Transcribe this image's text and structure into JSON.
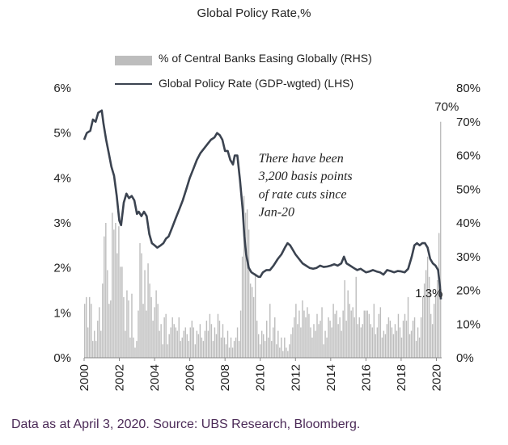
{
  "chart_data": {
    "type": "bar+line",
    "title": "Global Policy Rate,%",
    "legend": [
      {
        "label": "% of Central Banks Easing Globally (RHS)",
        "kind": "bar",
        "color": "#bdbdbd"
      },
      {
        "label": "Global Policy Rate (GDP-wgted) (LHS)",
        "kind": "line",
        "color": "#3b4350"
      }
    ],
    "x_ticks": [
      "2000",
      "2002",
      "2004",
      "2006",
      "2008",
      "2010",
      "2012",
      "2014",
      "2016",
      "2018",
      "2020"
    ],
    "y_left_ticks": [
      "0%",
      "1%",
      "2%",
      "3%",
      "4%",
      "5%",
      "6%"
    ],
    "y_right_ticks": [
      "0%",
      "10%",
      "20%",
      "30%",
      "40%",
      "50%",
      "60%",
      "70%",
      "80%"
    ],
    "y_left_range": [
      0,
      6
    ],
    "y_right_range": [
      0,
      80
    ],
    "x_range": [
      2000.0,
      2020.3
    ],
    "grid": false,
    "annotations": [
      {
        "text": "There have been",
        "x": 2009.9,
        "y": 4.35
      },
      {
        "text": "3,200 basis points",
        "x": 2009.9,
        "y": 3.95
      },
      {
        "text": "of rate cuts since",
        "x": 2009.9,
        "y": 3.55
      },
      {
        "text": "Jan-20",
        "x": 2009.9,
        "y": 3.15
      },
      {
        "text": "70%",
        "x": 2019.9,
        "y": 5.5
      },
      {
        "text": "1.3%",
        "x": 2018.8,
        "y": 1.35
      }
    ],
    "line_series": {
      "name": "Global Policy Rate (GDP-wgted) (LHS)",
      "points": [
        [
          2000.0,
          4.85
        ],
        [
          2000.15,
          5.0
        ],
        [
          2000.35,
          5.05
        ],
        [
          2000.5,
          5.3
        ],
        [
          2000.65,
          5.25
        ],
        [
          2000.8,
          5.45
        ],
        [
          2001.0,
          5.5
        ],
        [
          2001.1,
          5.2
        ],
        [
          2001.25,
          4.85
        ],
        [
          2001.4,
          4.55
        ],
        [
          2001.55,
          4.25
        ],
        [
          2001.7,
          4.05
        ],
        [
          2001.85,
          3.6
        ],
        [
          2002.0,
          3.05
        ],
        [
          2002.1,
          2.95
        ],
        [
          2002.25,
          3.45
        ],
        [
          2002.4,
          3.65
        ],
        [
          2002.55,
          3.55
        ],
        [
          2002.7,
          3.6
        ],
        [
          2002.85,
          3.5
        ],
        [
          2003.0,
          3.2
        ],
        [
          2003.1,
          3.25
        ],
        [
          2003.25,
          3.15
        ],
        [
          2003.4,
          3.25
        ],
        [
          2003.55,
          3.15
        ],
        [
          2003.7,
          2.75
        ],
        [
          2003.85,
          2.55
        ],
        [
          2004.0,
          2.5
        ],
        [
          2004.15,
          2.45
        ],
        [
          2004.35,
          2.5
        ],
        [
          2004.5,
          2.55
        ],
        [
          2004.65,
          2.65
        ],
        [
          2004.8,
          2.7
        ],
        [
          2005.0,
          2.9
        ],
        [
          2005.2,
          3.1
        ],
        [
          2005.4,
          3.3
        ],
        [
          2005.6,
          3.5
        ],
        [
          2005.8,
          3.75
        ],
        [
          2006.0,
          4.0
        ],
        [
          2006.2,
          4.2
        ],
        [
          2006.4,
          4.4
        ],
        [
          2006.6,
          4.55
        ],
        [
          2006.8,
          4.65
        ],
        [
          2007.0,
          4.75
        ],
        [
          2007.2,
          4.85
        ],
        [
          2007.4,
          4.9
        ],
        [
          2007.55,
          5.0
        ],
        [
          2007.7,
          4.95
        ],
        [
          2007.85,
          4.85
        ],
        [
          2008.0,
          4.6
        ],
        [
          2008.15,
          4.6
        ],
        [
          2008.3,
          4.4
        ],
        [
          2008.45,
          4.3
        ],
        [
          2008.55,
          4.5
        ],
        [
          2008.7,
          4.5
        ],
        [
          2008.85,
          3.95
        ],
        [
          2009.0,
          3.3
        ],
        [
          2009.1,
          2.7
        ],
        [
          2009.2,
          2.3
        ],
        [
          2009.35,
          2.0
        ],
        [
          2009.5,
          1.9
        ],
        [
          2009.7,
          1.85
        ],
        [
          2009.9,
          1.8
        ],
        [
          2010.0,
          1.8
        ],
        [
          2010.15,
          1.9
        ],
        [
          2010.35,
          1.95
        ],
        [
          2010.55,
          1.95
        ],
        [
          2010.75,
          2.05
        ],
        [
          2011.0,
          2.2
        ],
        [
          2011.2,
          2.3
        ],
        [
          2011.4,
          2.45
        ],
        [
          2011.55,
          2.55
        ],
        [
          2011.7,
          2.5
        ],
        [
          2011.85,
          2.4
        ],
        [
          2012.0,
          2.3
        ],
        [
          2012.2,
          2.2
        ],
        [
          2012.4,
          2.1
        ],
        [
          2012.6,
          2.05
        ],
        [
          2012.8,
          2.0
        ],
        [
          2013.0,
          1.98
        ],
        [
          2013.2,
          2.0
        ],
        [
          2013.4,
          2.05
        ],
        [
          2013.6,
          2.02
        ],
        [
          2013.8,
          2.03
        ],
        [
          2014.0,
          2.05
        ],
        [
          2014.2,
          2.08
        ],
        [
          2014.4,
          2.05
        ],
        [
          2014.6,
          2.1
        ],
        [
          2014.75,
          2.25
        ],
        [
          2014.9,
          2.1
        ],
        [
          2015.1,
          2.05
        ],
        [
          2015.3,
          2.0
        ],
        [
          2015.5,
          1.95
        ],
        [
          2015.7,
          1.98
        ],
        [
          2016.0,
          1.9
        ],
        [
          2016.2,
          1.92
        ],
        [
          2016.4,
          1.95
        ],
        [
          2016.6,
          1.92
        ],
        [
          2016.8,
          1.9
        ],
        [
          2017.0,
          1.85
        ],
        [
          2017.2,
          1.95
        ],
        [
          2017.4,
          1.93
        ],
        [
          2017.6,
          1.9
        ],
        [
          2017.8,
          1.93
        ],
        [
          2018.0,
          1.92
        ],
        [
          2018.2,
          1.9
        ],
        [
          2018.4,
          1.98
        ],
        [
          2018.6,
          2.25
        ],
        [
          2018.75,
          2.5
        ],
        [
          2018.9,
          2.55
        ],
        [
          2019.05,
          2.5
        ],
        [
          2019.2,
          2.55
        ],
        [
          2019.35,
          2.55
        ],
        [
          2019.5,
          2.45
        ],
        [
          2019.65,
          2.2
        ],
        [
          2019.8,
          2.1
        ],
        [
          2019.95,
          2.05
        ],
        [
          2020.1,
          1.95
        ],
        [
          2020.2,
          1.6
        ],
        [
          2020.26,
          1.3
        ]
      ]
    },
    "bar_series": {
      "name": "% of Central Banks Easing Globally (RHS)",
      "values": [
        16,
        18,
        9,
        18,
        16,
        5,
        8,
        5,
        11,
        15,
        8,
        22,
        36,
        40,
        26,
        16,
        17,
        43,
        38,
        40,
        31,
        39,
        27,
        27,
        18,
        8,
        20,
        17,
        6,
        19,
        6,
        3,
        5,
        14,
        34,
        31,
        16,
        26,
        14,
        28,
        22,
        18,
        11,
        15,
        20,
        16,
        8,
        10,
        4,
        12,
        13,
        4,
        7,
        9,
        12,
        10,
        9,
        8,
        12,
        5,
        6,
        8,
        9,
        7,
        5,
        9,
        11,
        9,
        4,
        8,
        7,
        10,
        6,
        5,
        8,
        11,
        8,
        13,
        10,
        5,
        9,
        7,
        13,
        11,
        6,
        10,
        6,
        4,
        8,
        3,
        6,
        3,
        5,
        6,
        9,
        5,
        14,
        30,
        48,
        43,
        44,
        38,
        22,
        21,
        18,
        25,
        11,
        7,
        4,
        8,
        7,
        5,
        11,
        6,
        16,
        5,
        9,
        12,
        4,
        8,
        3,
        6,
        2,
        6,
        3,
        2,
        4,
        7,
        9,
        12,
        16,
        10,
        14,
        9,
        17,
        14,
        12,
        15,
        13,
        9,
        6,
        10,
        8,
        13,
        10,
        11,
        15,
        4,
        8,
        6,
        12,
        11,
        9,
        16,
        13,
        14,
        10,
        12,
        8,
        14,
        23,
        11,
        20,
        16,
        14,
        15,
        12,
        24,
        10,
        12,
        9,
        10,
        14,
        14,
        14,
        13,
        10,
        9,
        16,
        7,
        9,
        13,
        15,
        6,
        8,
        7,
        10,
        12,
        11,
        9,
        7,
        10,
        8,
        13,
        9,
        6,
        11,
        13,
        11,
        18,
        7,
        8,
        11,
        12,
        5,
        9,
        6,
        12,
        18,
        22,
        26,
        30,
        24,
        13,
        10,
        16,
        19,
        23,
        37,
        70
      ]
    }
  },
  "footer": "Data as at April 3, 2020. Source: UBS Research, Bloomberg."
}
